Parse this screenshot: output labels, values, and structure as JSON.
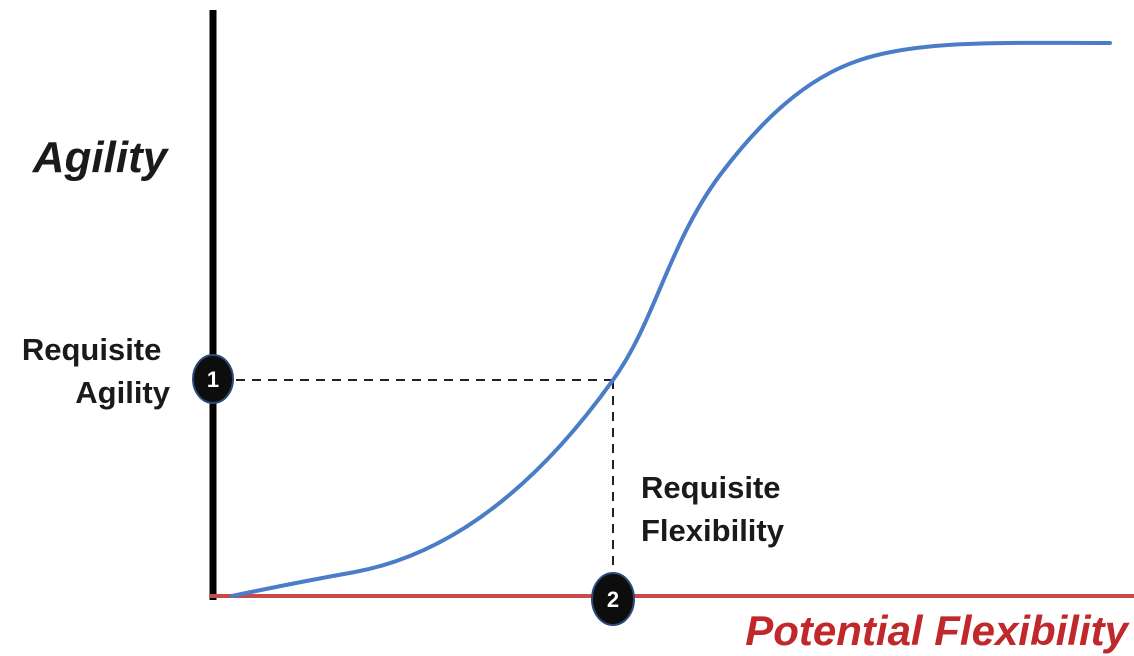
{
  "axes": {
    "y_title": "Agility",
    "x_title": "Potential Flexibility",
    "x_title_color": "#c0282b",
    "y_axis_color": "#000000",
    "x_axis_color": "#c94a4a"
  },
  "curve": {
    "color": "#4a7cc7"
  },
  "markers": [
    {
      "number": "1",
      "label_lines": [
        "Requisite",
        "Agility"
      ]
    },
    {
      "number": "2",
      "label_lines": [
        "Requisite",
        "Flexibility"
      ]
    }
  ]
}
